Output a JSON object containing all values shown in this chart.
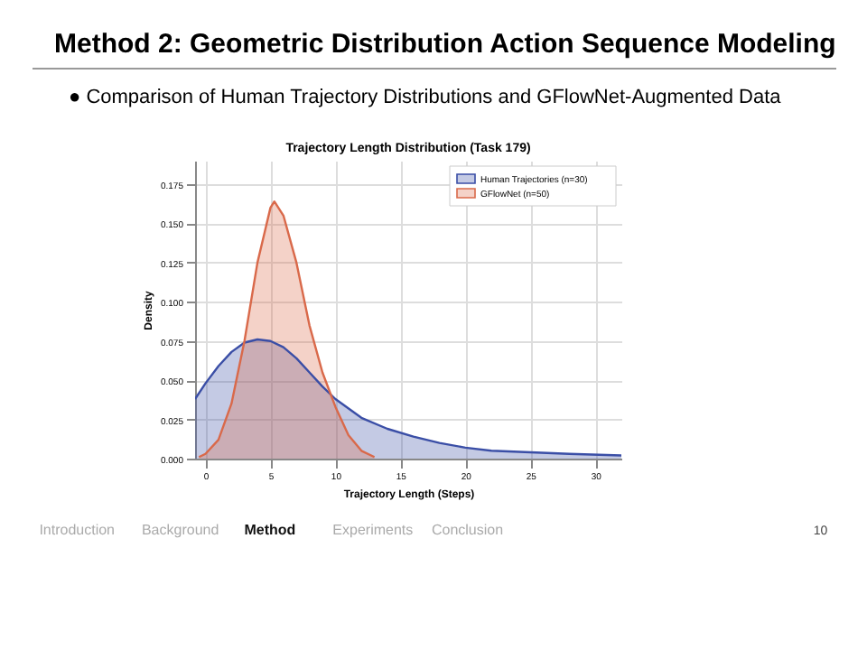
{
  "chart_data": {
    "type": "area",
    "title": "Trajectory Length Distribution (Task 179)",
    "xlabel": "Trajectory Length (Steps)",
    "ylabel": "Density",
    "annotations": [
      "Method 2: Geometric Distribution Action Sequence Modeling",
      "●   Comparison of Human Trajectory Distributions and GFlowNet-Augmented Data",
      "Introduction",
      "Background",
      "Method",
      "Experiments",
      "Conclusion",
      "10"
    ],
    "series": [
      {
        "name": "Human Trajectories (n=30)",
        "color": "#3a4ea6",
        "x": [
          -0.8,
          0,
          1,
          2,
          3,
          4,
          5,
          6,
          7,
          8,
          9,
          10,
          12,
          14,
          16,
          18,
          20,
          22,
          25,
          28,
          32
        ],
        "values": [
          0.038,
          0.048,
          0.059,
          0.068,
          0.074,
          0.076,
          0.075,
          0.071,
          0.064,
          0.055,
          0.046,
          0.038,
          0.026,
          0.019,
          0.014,
          0.01,
          0.007,
          0.005,
          0.004,
          0.003,
          0.002
        ]
      },
      {
        "name": "GFlowNet (n=50)",
        "color": "#d9694a",
        "x": [
          -0.5,
          0,
          1,
          2,
          3,
          4,
          5,
          5.3,
          6,
          7,
          8,
          9,
          10,
          11,
          12,
          13
        ],
        "values": [
          0.001,
          0.003,
          0.012,
          0.035,
          0.075,
          0.125,
          0.16,
          0.164,
          0.155,
          0.125,
          0.085,
          0.055,
          0.033,
          0.015,
          0.005,
          0.001
        ]
      }
    ],
    "xlim": [
      -0.8,
      32
    ],
    "xticks": [
      0,
      5,
      10,
      15,
      20,
      25,
      30
    ],
    "ylim": [
      0,
      0.19
    ],
    "yticks": [
      {
        "value": 0,
        "label": "0.000"
      },
      {
        "value": 0.025,
        "label": "0.025"
      },
      {
        "value": 0.05,
        "label": "0.050"
      },
      {
        "value": 0.075,
        "label": "0.075"
      },
      {
        "value": 0.1,
        "label": "0.100"
      },
      {
        "value": 0.125,
        "label": "0.125"
      },
      {
        "value": 0.15,
        "label": "0.150"
      },
      {
        "value": 0.175,
        "label": "0.175"
      }
    ],
    "grid": true,
    "legend": "top right"
  }
}
